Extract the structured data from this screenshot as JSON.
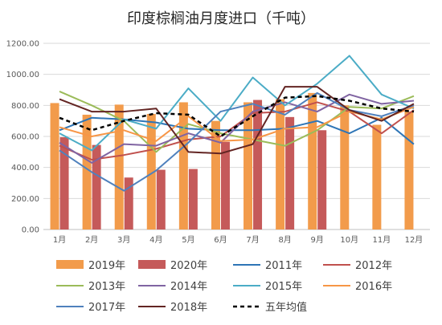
{
  "chart_data": {
    "type": "bar",
    "title": "印度棕榈油月度进口（千吨）",
    "xlabel": "",
    "ylabel": "",
    "ylim": [
      0,
      1200
    ],
    "yticks": [
      "0.00",
      "200.00",
      "400.00",
      "600.00",
      "800.00",
      "1000.00",
      "1200.00"
    ],
    "grid": true,
    "legend_position": "bottom",
    "categories": [
      "1月",
      "2月",
      "3月",
      "4月",
      "5月",
      "6月",
      "7月",
      "8月",
      "9月",
      "10月",
      "11月",
      "12月"
    ],
    "series": [
      {
        "name": "2019年",
        "kind": "bar",
        "color": "#f29b4b",
        "values": [
          815,
          740,
          805,
          745,
          820,
          700,
          820,
          840,
          880,
          800,
          675,
          760
        ]
      },
      {
        "name": "2020年",
        "kind": "bar",
        "color": "#c55a5a",
        "values": [
          595,
          545,
          335,
          385,
          390,
          565,
          835,
          725,
          640,
          null,
          null,
          null
        ]
      },
      {
        "name": "2011年",
        "kind": "line",
        "color": "#2e75b6",
        "values": [
          640,
          720,
          710,
          690,
          650,
          640,
          640,
          650,
          700,
          620,
          720,
          550
        ]
      },
      {
        "name": "2012年",
        "kind": "line",
        "color": "#c0504d",
        "values": [
          540,
          450,
          480,
          520,
          580,
          600,
          750,
          760,
          820,
          760,
          620,
          770
        ]
      },
      {
        "name": "2013年",
        "kind": "line",
        "color": "#9bbb59",
        "values": [
          890,
          800,
          700,
          500,
          680,
          620,
          580,
          540,
          640,
          790,
          780,
          860
        ]
      },
      {
        "name": "2014年",
        "kind": "line",
        "color": "#8064a2",
        "values": [
          560,
          430,
          550,
          540,
          620,
          560,
          760,
          820,
          760,
          870,
          810,
          830
        ]
      },
      {
        "name": "2015年",
        "kind": "line",
        "color": "#4bacc6",
        "values": [
          620,
          510,
          710,
          650,
          910,
          700,
          980,
          800,
          940,
          1120,
          870,
          780
        ]
      },
      {
        "name": "2016年",
        "kind": "line",
        "color": "#f79646",
        "values": [
          660,
          600,
          640,
          570,
          730,
          570,
          580,
          650,
          660,
          760,
          710,
          790
        ]
      },
      {
        "name": "2017年",
        "kind": "line",
        "color": "#4f81bd",
        "values": [
          510,
          370,
          250,
          380,
          560,
          760,
          810,
          740,
          880,
          770,
          730,
          800
        ]
      },
      {
        "name": "2018年",
        "kind": "line",
        "color": "#632523",
        "values": [
          840,
          760,
          760,
          780,
          500,
          490,
          550,
          920,
          920,
          770,
          700,
          810
        ]
      },
      {
        "name": "五年均值",
        "kind": "line",
        "dashed": true,
        "color": "#000000",
        "values": [
          720,
          640,
          700,
          750,
          740,
          600,
          730,
          850,
          860,
          830,
          780,
          760
        ]
      }
    ]
  }
}
